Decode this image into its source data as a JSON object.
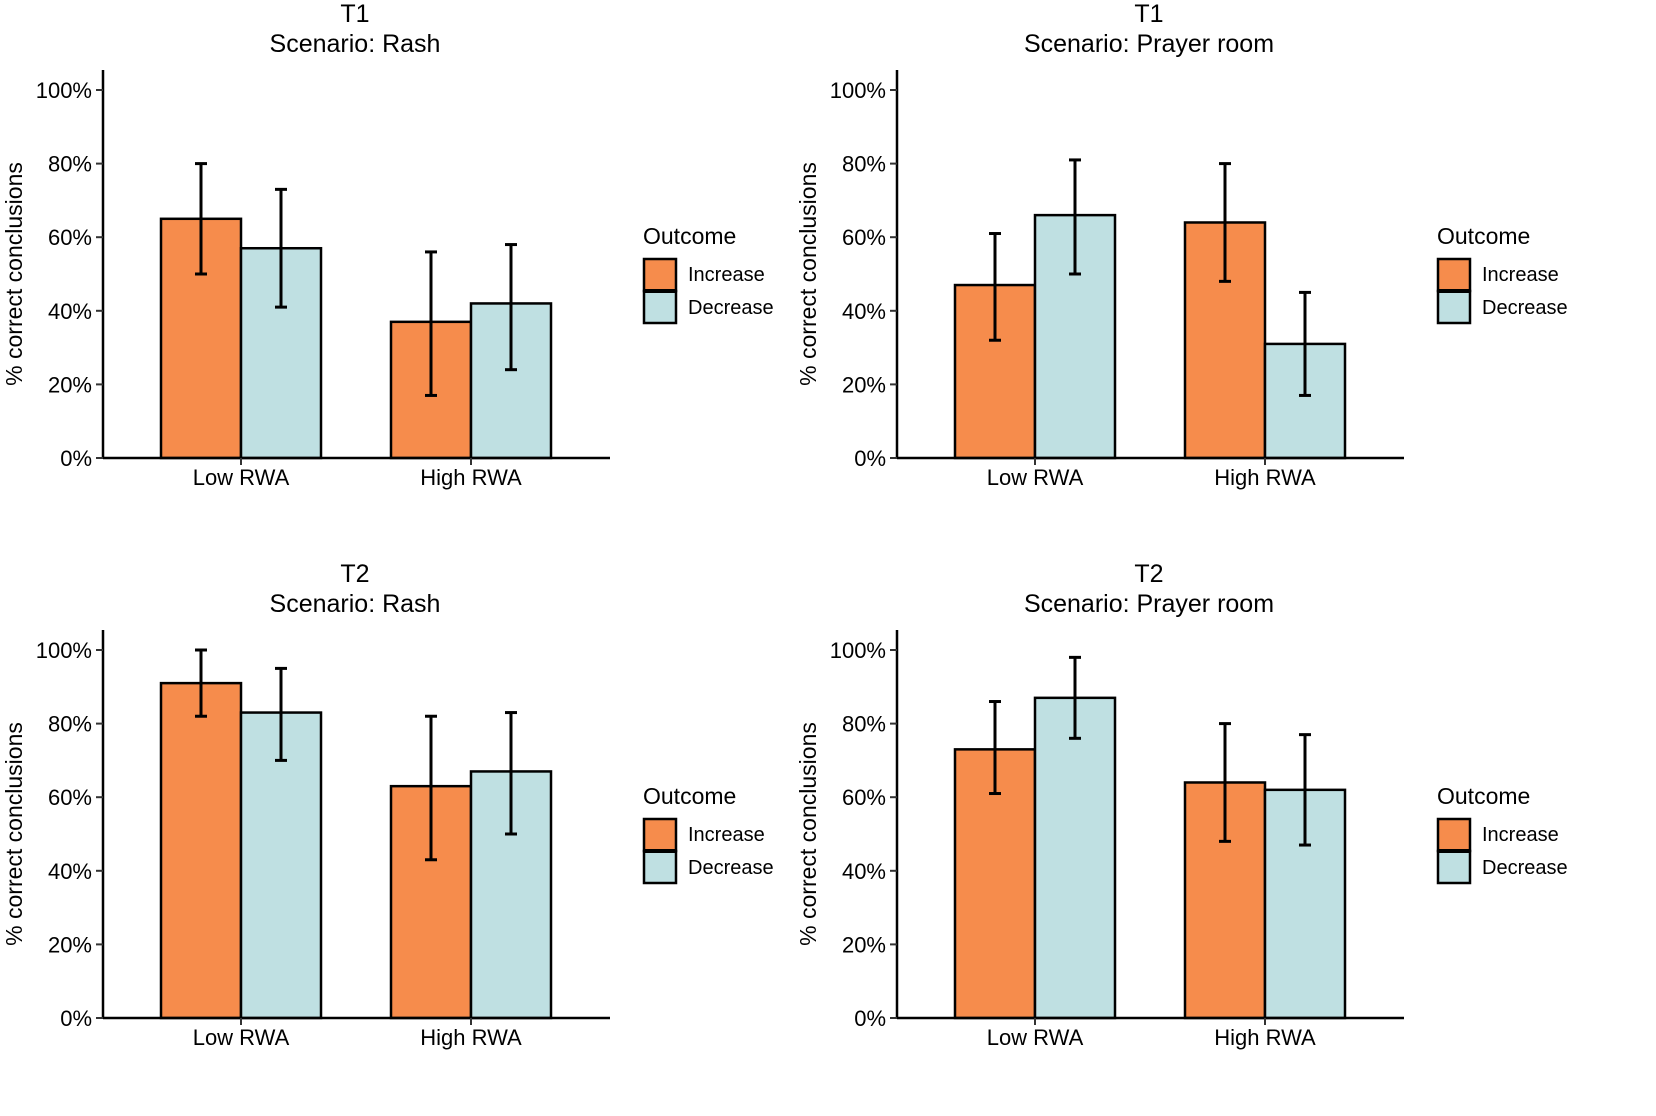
{
  "colors": {
    "increase": "#F68C4C",
    "decrease": "#BFE0E2",
    "outline": "#000000"
  },
  "legend": {
    "title": "Outcome",
    "items": [
      {
        "key": "increase",
        "label": "Increase"
      },
      {
        "key": "decrease",
        "label": "Decrease"
      }
    ]
  },
  "chart_data": [
    {
      "type": "bar",
      "title": "T1",
      "subtitle": "Scenario: Rash",
      "xlabel": "",
      "ylabel": "% correct conclusions",
      "categories": [
        "Low RWA",
        "High RWA"
      ],
      "y_ticks": [
        "0%",
        "20%",
        "40%",
        "60%",
        "80%",
        "100%"
      ],
      "ylim": [
        0,
        100
      ],
      "series": [
        {
          "name": "Increase",
          "values": [
            65,
            37
          ],
          "ci_low": [
            50,
            17
          ],
          "ci_high": [
            80,
            56
          ]
        },
        {
          "name": "Decrease",
          "values": [
            57,
            42
          ],
          "ci_low": [
            41,
            24
          ],
          "ci_high": [
            73,
            58
          ]
        }
      ]
    },
    {
      "type": "bar",
      "title": "T1",
      "subtitle": "Scenario: Prayer room",
      "xlabel": "",
      "ylabel": "% correct conclusions",
      "categories": [
        "Low RWA",
        "High RWA"
      ],
      "y_ticks": [
        "0%",
        "20%",
        "40%",
        "60%",
        "80%",
        "100%"
      ],
      "ylim": [
        0,
        100
      ],
      "series": [
        {
          "name": "Increase",
          "values": [
            47,
            64
          ],
          "ci_low": [
            32,
            48
          ],
          "ci_high": [
            61,
            80
          ]
        },
        {
          "name": "Decrease",
          "values": [
            66,
            31
          ],
          "ci_low": [
            50,
            17
          ],
          "ci_high": [
            81,
            45
          ]
        }
      ]
    },
    {
      "type": "bar",
      "title": "T2",
      "subtitle": "Scenario: Rash",
      "xlabel": "",
      "ylabel": "% correct conclusions",
      "categories": [
        "Low RWA",
        "High RWA"
      ],
      "y_ticks": [
        "0%",
        "20%",
        "40%",
        "60%",
        "80%",
        "100%"
      ],
      "ylim": [
        0,
        100
      ],
      "series": [
        {
          "name": "Increase",
          "values": [
            91,
            63
          ],
          "ci_low": [
            82,
            43
          ],
          "ci_high": [
            100,
            82
          ]
        },
        {
          "name": "Decrease",
          "values": [
            83,
            67
          ],
          "ci_low": [
            70,
            50
          ],
          "ci_high": [
            95,
            83
          ]
        }
      ]
    },
    {
      "type": "bar",
      "title": "T2",
      "subtitle": "Scenario: Prayer room",
      "xlabel": "",
      "ylabel": "% correct conclusions",
      "categories": [
        "Low RWA",
        "High RWA"
      ],
      "y_ticks": [
        "0%",
        "20%",
        "40%",
        "60%",
        "80%",
        "100%"
      ],
      "ylim": [
        0,
        100
      ],
      "series": [
        {
          "name": "Increase",
          "values": [
            73,
            64
          ],
          "ci_low": [
            61,
            48
          ],
          "ci_high": [
            86,
            80
          ]
        },
        {
          "name": "Decrease",
          "values": [
            87,
            62
          ],
          "ci_low": [
            76,
            47
          ],
          "ci_high": [
            98,
            77
          ]
        }
      ]
    }
  ]
}
